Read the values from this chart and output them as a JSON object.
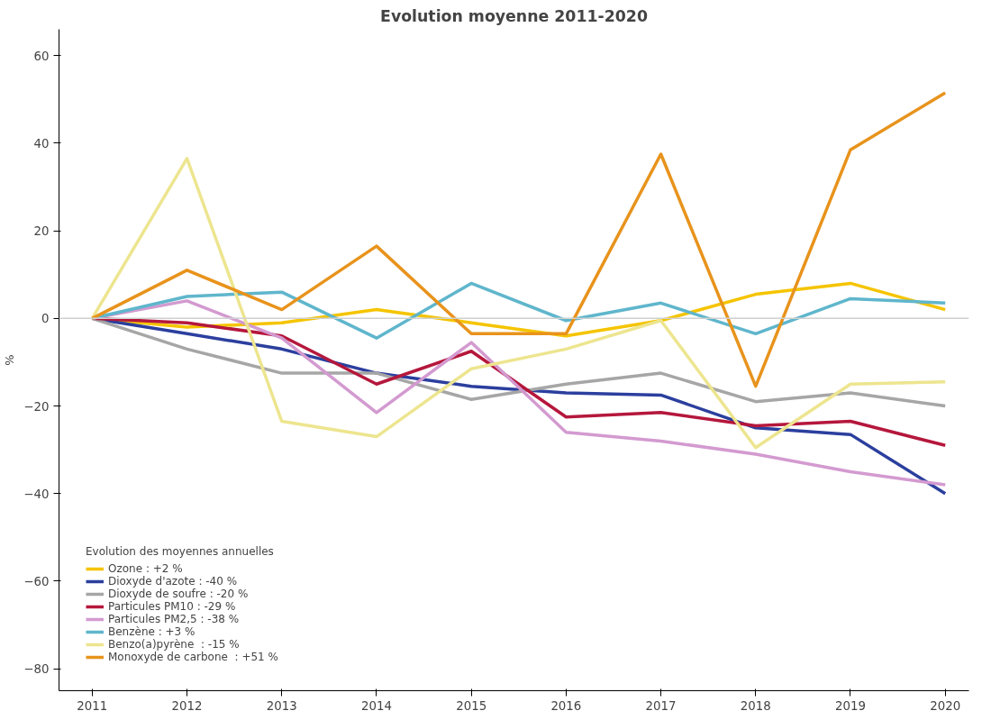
{
  "chart_data": {
    "type": "line",
    "title": "Evolution moyenne 2011-2020",
    "ylabel": "%",
    "legend_title": "Evolution des moyennes annuelles",
    "legend": "bottom left",
    "grid": false,
    "x": [
      2011,
      2012,
      2013,
      2014,
      2015,
      2016,
      2017,
      2018,
      2019,
      2020
    ],
    "xlim": [
      2010.65,
      2020.25
    ],
    "xticks": [
      2011,
      2012,
      2013,
      2014,
      2015,
      2016,
      2017,
      2018,
      2019,
      2020
    ],
    "ylim": [
      -85,
      66
    ],
    "yticks": [
      -80,
      -60,
      -40,
      -20,
      0,
      20,
      40,
      60
    ],
    "ref_lines": [
      {
        "axis": "y",
        "value": 0,
        "color": "#d0d0d0"
      }
    ],
    "series": [
      {
        "name": "Ozone : +2 %",
        "color": "#f5c400",
        "values": [
          0,
          -2,
          -1,
          2,
          -1,
          -4,
          -0.5,
          5.5,
          8,
          2
        ]
      },
      {
        "name": "Dioxyde d'azote : -40 %",
        "color": "#2b3f9e",
        "values": [
          0,
          -3.5,
          -7,
          -12.5,
          -15.5,
          -17,
          -17.5,
          -25,
          -26.5,
          -40
        ]
      },
      {
        "name": "Dioxyde de soufre : -20 %",
        "color": "#a6a6a6",
        "values": [
          0,
          -7,
          -12.5,
          -12.5,
          -18.5,
          -15,
          -12.5,
          -19,
          -17,
          -20
        ]
      },
      {
        "name": "Particules PM10 : -29 %",
        "color": "#b5173c",
        "values": [
          0,
          -1,
          -4,
          -15,
          -7.5,
          -22.5,
          -21.5,
          -24.5,
          -23.5,
          -29
        ]
      },
      {
        "name": "Particules PM2,5 : -38 %",
        "color": "#d39ad0",
        "values": [
          0,
          4,
          -4.5,
          -21.5,
          -5.5,
          -26,
          -28,
          -31,
          -35,
          -38
        ]
      },
      {
        "name": "Benzène : +3 %",
        "color": "#5fb6cc",
        "values": [
          0,
          5,
          6,
          -4.5,
          8,
          -0.5,
          3.5,
          -3.5,
          4.5,
          3.5
        ]
      },
      {
        "name": "Benzo(a)pyrène  : -15 %",
        "color": "#ede58f",
        "values": [
          0,
          36.5,
          -23.5,
          -27,
          -11.5,
          -7,
          -0.5,
          -29.5,
          -15,
          -14.5
        ]
      },
      {
        "name": "Monoxyde de carbone  : +51 %",
        "color": "#e8931c",
        "values": [
          0,
          11,
          2,
          16.5,
          -3.5,
          -3.5,
          37.5,
          -15.5,
          38.5,
          51.5
        ]
      }
    ]
  }
}
